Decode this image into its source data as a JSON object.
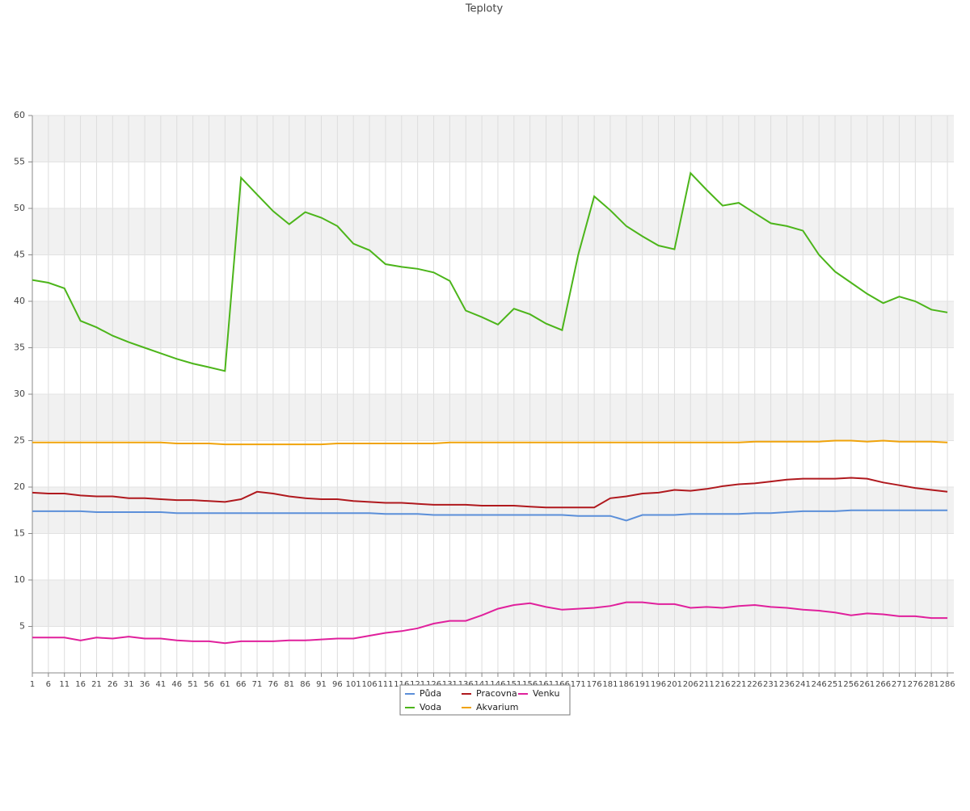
{
  "chart_data": {
    "type": "line",
    "title": "Teploty",
    "x": [
      1,
      6,
      11,
      16,
      21,
      26,
      31,
      36,
      41,
      46,
      51,
      56,
      61,
      66,
      71,
      76,
      81,
      86,
      91,
      96,
      101,
      106,
      111,
      116,
      121,
      126,
      131,
      136,
      141,
      146,
      151,
      156,
      161,
      166,
      171,
      176,
      181,
      186,
      191,
      196,
      201,
      206,
      211,
      216,
      221,
      226,
      231,
      236,
      241,
      246,
      251,
      256,
      261,
      266,
      271,
      276,
      281,
      286
    ],
    "xlim": [
      1,
      288
    ],
    "ylim": [
      0,
      60
    ],
    "yticks": [
      5,
      10,
      15,
      20,
      25,
      30,
      35,
      40,
      45,
      50,
      55,
      60
    ],
    "grid": true,
    "legend": "bottom",
    "series": [
      {
        "name": "Půda",
        "color": "#5b8fd9",
        "values": [
          17.4,
          17.4,
          17.4,
          17.4,
          17.3,
          17.3,
          17.3,
          17.3,
          17.3,
          17.2,
          17.2,
          17.2,
          17.2,
          17.2,
          17.2,
          17.2,
          17.2,
          17.2,
          17.2,
          17.2,
          17.2,
          17.2,
          17.1,
          17.1,
          17.1,
          17.0,
          17.0,
          17.0,
          17.0,
          17.0,
          17.0,
          17.0,
          17.0,
          17.0,
          16.9,
          16.9,
          16.9,
          16.4,
          17.0,
          17.0,
          17.0,
          17.1,
          17.1,
          17.1,
          17.1,
          17.2,
          17.2,
          17.3,
          17.4,
          17.4,
          17.4,
          17.5,
          17.5,
          17.5,
          17.5,
          17.5,
          17.5,
          17.5
        ]
      },
      {
        "name": "Pracovna",
        "color": "#b0191e",
        "values": [
          19.4,
          19.3,
          19.3,
          19.1,
          19.0,
          19.0,
          18.8,
          18.8,
          18.7,
          18.6,
          18.6,
          18.5,
          18.4,
          18.7,
          19.5,
          19.3,
          19.0,
          18.8,
          18.7,
          18.7,
          18.5,
          18.4,
          18.3,
          18.3,
          18.2,
          18.1,
          18.1,
          18.1,
          18.0,
          18.0,
          18.0,
          17.9,
          17.8,
          17.8,
          17.8,
          17.8,
          18.8,
          19.0,
          19.3,
          19.4,
          19.7,
          19.6,
          19.8,
          20.1,
          20.3,
          20.4,
          20.6,
          20.8,
          20.9,
          20.9,
          20.9,
          21.0,
          20.9,
          20.5,
          20.2,
          19.9,
          19.7,
          19.5
        ]
      },
      {
        "name": "Venku",
        "color": "#e0209c",
        "values": [
          3.8,
          3.8,
          3.8,
          3.5,
          3.8,
          3.7,
          3.9,
          3.7,
          3.7,
          3.5,
          3.4,
          3.4,
          3.2,
          3.4,
          3.4,
          3.4,
          3.5,
          3.5,
          3.6,
          3.7,
          3.7,
          4.0,
          4.3,
          4.5,
          4.8,
          5.3,
          5.6,
          5.6,
          6.2,
          6.9,
          7.3,
          7.5,
          7.1,
          6.8,
          6.9,
          7.0,
          7.2,
          7.6,
          7.6,
          7.4,
          7.4,
          7.0,
          7.1,
          7.0,
          7.2,
          7.3,
          7.1,
          7.0,
          6.8,
          6.7,
          6.5,
          6.2,
          6.4,
          6.3,
          6.1,
          6.1,
          5.9,
          5.9
        ]
      },
      {
        "name": "Voda",
        "color": "#4cb51a",
        "values": [
          42.3,
          42.0,
          41.4,
          37.9,
          37.2,
          36.3,
          35.6,
          35.0,
          34.4,
          33.8,
          33.3,
          32.9,
          32.5,
          53.3,
          51.5,
          49.7,
          48.3,
          49.6,
          49.0,
          48.1,
          46.2,
          45.5,
          44.0,
          43.7,
          43.5,
          43.1,
          42.2,
          39.0,
          38.3,
          37.5,
          39.2,
          38.6,
          37.6,
          36.9,
          45.0,
          51.3,
          49.8,
          48.1,
          47.0,
          46.0,
          45.6,
          53.8,
          52.0,
          50.3,
          50.6,
          49.5,
          48.4,
          48.1,
          47.6,
          45.0,
          43.2,
          42.0,
          40.8,
          39.8,
          40.5,
          40.0,
          39.1,
          38.8
        ]
      },
      {
        "name": "Akvarium",
        "color": "#f0a30a",
        "values": [
          24.8,
          24.8,
          24.8,
          24.8,
          24.8,
          24.8,
          24.8,
          24.8,
          24.8,
          24.7,
          24.7,
          24.7,
          24.6,
          24.6,
          24.6,
          24.6,
          24.6,
          24.6,
          24.6,
          24.7,
          24.7,
          24.7,
          24.7,
          24.7,
          24.7,
          24.7,
          24.8,
          24.8,
          24.8,
          24.8,
          24.8,
          24.8,
          24.8,
          24.8,
          24.8,
          24.8,
          24.8,
          24.8,
          24.8,
          24.8,
          24.8,
          24.8,
          24.8,
          24.8,
          24.8,
          24.9,
          24.9,
          24.9,
          24.9,
          24.9,
          25.0,
          25.0,
          24.9,
          25.0,
          24.9,
          24.9,
          24.9,
          24.8
        ]
      }
    ]
  }
}
